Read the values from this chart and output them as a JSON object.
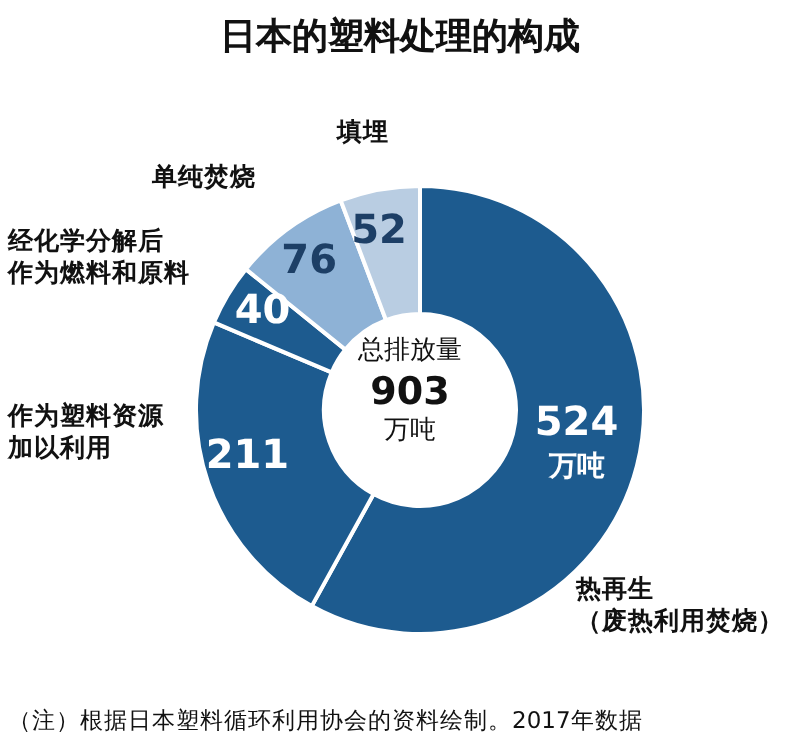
{
  "chart_data": {
    "type": "donut",
    "title": "日本的塑料处理的构成",
    "categories": [
      "热再生（废热利用焚烧）",
      "作为塑料资源加以利用",
      "经化学分解后作为燃料和原料",
      "单纯焚烧",
      "填埋"
    ],
    "values": [
      524,
      211,
      40,
      76,
      52
    ],
    "value_labels": [
      "524万吨",
      "211",
      "40",
      "76",
      "52"
    ],
    "colors": [
      "#1d5b8f",
      "#1d5b8f",
      "#1d5b8f",
      "#8eb2d6",
      "#b9cde2"
    ],
    "annotations": [
      "总排放量",
      "903",
      "万吨",
      "（注）根据日本塑料循环利用协会的资料绘制。2017年数据"
    ]
  }
}
